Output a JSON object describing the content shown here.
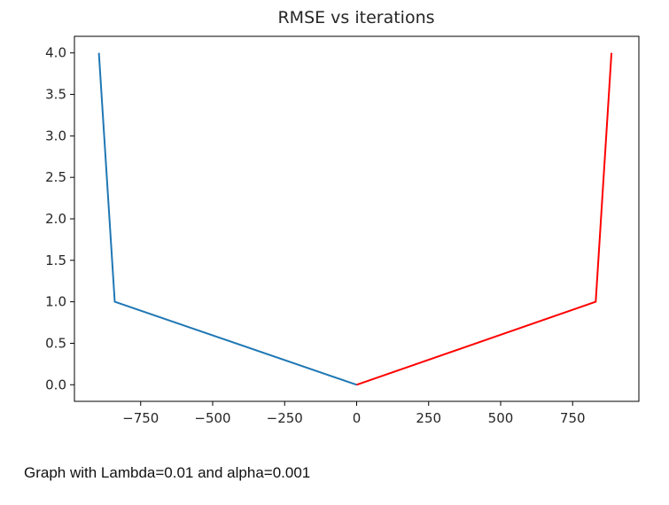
{
  "caption": "Graph with Lambda=0.01 and alpha=0.001",
  "chart_data": {
    "type": "line",
    "title": "RMSE vs iterations",
    "xlabel": "",
    "ylabel": "",
    "xlim": [
      -980,
      980
    ],
    "ylim": [
      -0.2,
      4.2
    ],
    "grid": false,
    "x_ticks": [
      -750,
      -500,
      -250,
      0,
      250,
      500,
      750
    ],
    "x_tick_labels": [
      "−750",
      "−500",
      "−250",
      "0",
      "250",
      "500",
      "750"
    ],
    "y_ticks": [
      0.0,
      0.5,
      1.0,
      1.5,
      2.0,
      2.5,
      3.0,
      3.5,
      4.0
    ],
    "y_tick_labels": [
      "0.0",
      "0.5",
      "1.0",
      "1.5",
      "2.0",
      "2.5",
      "3.0",
      "3.5",
      "4.0"
    ],
    "series": [
      {
        "color": "#1f77b4",
        "x": [
          -895,
          -840,
          0
        ],
        "y": [
          4.0,
          1.0,
          0.0
        ]
      },
      {
        "color": "#ff0000",
        "x": [
          0,
          830,
          885
        ],
        "y": [
          0.0,
          1.0,
          4.0
        ]
      }
    ]
  }
}
